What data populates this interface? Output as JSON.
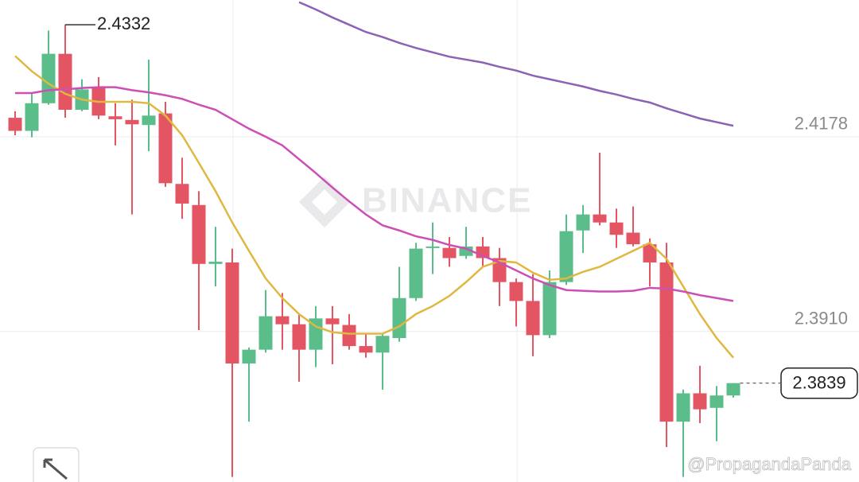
{
  "chart_data": {
    "type": "candlestick",
    "watermark": "BINANCE",
    "credit": "@PropagandaPanda",
    "categories": [
      null,
      null,
      null,
      null,
      null,
      null,
      null,
      null,
      null,
      null,
      null,
      null,
      null,
      null,
      null,
      null,
      null,
      null,
      null,
      null,
      null,
      null,
      null,
      null,
      null,
      null,
      null,
      null,
      null,
      null,
      null,
      null,
      null,
      null,
      null,
      null,
      null,
      null,
      null,
      null,
      null,
      null,
      null,
      null
    ],
    "open": [
      2.4204,
      2.4186,
      2.4224,
      2.4292,
      2.4215,
      2.4246,
      2.4206,
      2.4201,
      2.4194,
      2.421,
      2.4113,
      2.4084,
      2.4003,
      2.4005,
      2.3866,
      2.3885,
      2.3931,
      2.392,
      2.3885,
      2.3928,
      2.3919,
      2.389,
      2.3881,
      2.3901,
      2.3956,
      2.4025,
      2.4025,
      2.4014,
      2.4027,
      2.4011,
      2.3978,
      2.3952,
      2.3905,
      2.3978,
      2.4049,
      2.4071,
      2.406,
      2.4046,
      2.403,
      2.4005,
      2.3786,
      2.3825,
      2.3805,
      2.3822
    ],
    "high": [
      2.4213,
      2.4237,
      2.4324,
      2.4332,
      2.4257,
      2.426,
      2.4224,
      2.4229,
      2.4284,
      2.4226,
      2.4149,
      2.4103,
      2.4054,
      2.4024,
      2.3888,
      2.3967,
      2.3963,
      2.3934,
      2.3945,
      2.3945,
      2.3934,
      2.3907,
      2.3907,
      2.3999,
      2.4032,
      2.406,
      2.404,
      2.4054,
      2.404,
      2.4025,
      2.3983,
      2.3989,
      2.3994,
      2.4071,
      2.4084,
      2.4156,
      2.4079,
      2.4082,
      2.4038,
      2.4032,
      2.383,
      2.3863,
      2.3835,
      2.3839
    ],
    "low": [
      2.418,
      2.4177,
      2.4222,
      2.4204,
      2.4213,
      2.4202,
      2.4166,
      2.4071,
      2.4158,
      2.4109,
      2.4065,
      2.3912,
      2.3972,
      2.371,
      2.3786,
      2.3881,
      2.3885,
      2.3841,
      2.3861,
      2.3865,
      2.3885,
      2.3874,
      2.383,
      2.3896,
      2.3952,
      2.3989,
      2.3999,
      2.401,
      2.3999,
      2.3945,
      2.3917,
      2.3876,
      2.3901,
      2.3974,
      2.4018,
      2.4056,
      2.4025,
      2.4027,
      2.3972,
      2.3751,
      2.371,
      2.3784,
      2.3759,
      2.3819
    ],
    "close": [
      2.4186,
      2.4224,
      2.4292,
      2.4215,
      2.4243,
      2.4207,
      2.4202,
      2.4195,
      2.4207,
      2.4114,
      2.4086,
      2.4003,
      2.4006,
      2.3866,
      2.3885,
      2.3931,
      2.392,
      2.3885,
      2.3928,
      2.392,
      2.389,
      2.3881,
      2.3904,
      2.3956,
      2.4024,
      2.4027,
      2.4011,
      2.4027,
      2.4011,
      2.3978,
      2.3952,
      2.3905,
      2.3978,
      2.4048,
      2.4071,
      2.406,
      2.4043,
      2.403,
      2.4005,
      2.3786,
      2.3825,
      2.3803,
      2.3822,
      2.3839
    ],
    "up_color": "#5bbd8a",
    "down_color": "#e35563",
    "lines": [
      {
        "color": "#e0b740",
        "values": [
          2.4289,
          2.4268,
          2.4251,
          2.4237,
          2.4229,
          2.4226,
          2.4226,
          2.4226,
          2.4224,
          2.4207,
          2.418,
          2.4142,
          2.4103,
          2.406,
          2.4021,
          2.3983,
          2.3956,
          2.3934,
          2.3917,
          2.3909,
          2.3907,
          2.3907,
          2.3907,
          2.3917,
          2.3934,
          2.3945,
          2.3959,
          2.3978,
          2.3999,
          2.4007,
          2.4005,
          2.3991,
          2.3981,
          2.3983,
          2.3992,
          2.3999,
          2.401,
          2.4021,
          2.4032,
          2.401,
          2.3972,
          2.3934,
          2.3901,
          2.3874
        ]
      },
      {
        "color": "#cc4fb5",
        "values": [
          2.4238,
          2.4238,
          2.4242,
          2.4243,
          2.4245,
          2.4246,
          2.4246,
          2.4242,
          2.4239,
          2.4235,
          2.423,
          2.4222,
          2.4215,
          2.4202,
          2.4189,
          2.4178,
          2.4166,
          2.4147,
          2.4128,
          2.4108,
          2.4089,
          2.4071,
          2.4056,
          2.4049,
          2.4041,
          2.4036,
          2.4029,
          2.4024,
          2.4014,
          2.4005,
          2.3994,
          2.3983,
          2.3974,
          2.3967,
          2.3966,
          2.3965,
          2.3965,
          2.3966,
          2.397,
          2.3969,
          2.3965,
          2.396,
          2.3956,
          2.3952
        ]
      },
      {
        "color": "#8a63b5",
        "values": [
          null,
          null,
          null,
          null,
          null,
          null,
          null,
          null,
          null,
          null,
          null,
          null,
          null,
          null,
          null,
          null,
          null,
          2.4363,
          2.4353,
          2.4342,
          2.4332,
          2.4322,
          2.4315,
          2.4307,
          2.43,
          2.4294,
          2.4288,
          2.4284,
          2.428,
          2.4274,
          2.4269,
          2.4262,
          2.4257,
          2.4252,
          2.4247,
          2.4241,
          2.4236,
          2.423,
          2.4225,
          2.4217,
          2.421,
          2.4203,
          2.4198,
          2.4193
        ]
      }
    ],
    "ylim": [
      2.3703,
      2.4366
    ],
    "yticks": [
      2.4178,
      {
        "value": 2.391,
        "label": "2.3910"
      }
    ],
    "grid": true
  }
}
